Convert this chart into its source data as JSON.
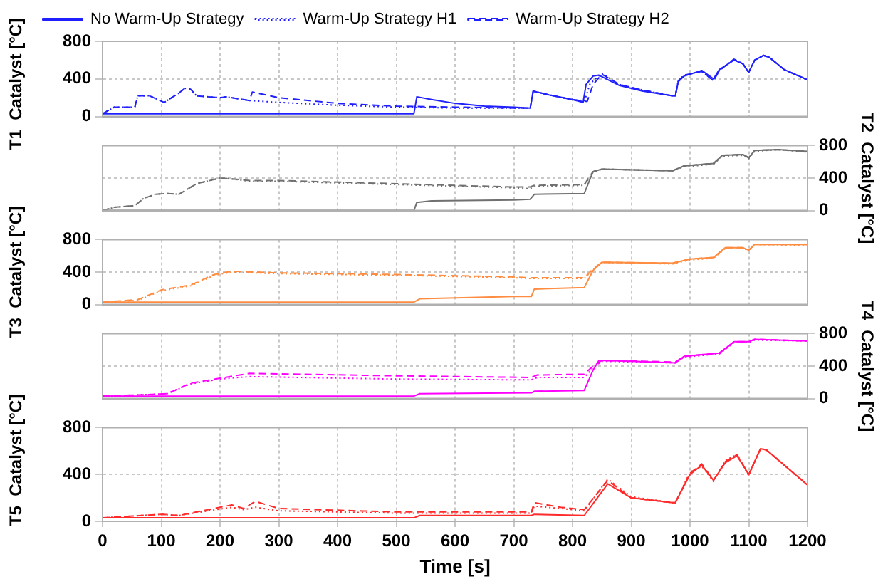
{
  "chart_data": [
    {
      "type": "line",
      "ylabel": "T1_Catalyst [°C]",
      "xlim": [
        0,
        1200
      ],
      "xticks": [
        0,
        100,
        200,
        300,
        400,
        500,
        600,
        700,
        800,
        900,
        1000,
        1100,
        1200
      ],
      "ylim": [
        0,
        800
      ],
      "yticks": [
        0,
        400,
        800
      ],
      "grid": true,
      "legend": "top left",
      "tick_labels": "y",
      "series": [
        {
          "name": "No Warm-Up Strategy",
          "color": "#2020ff",
          "line_style": "solid",
          "x": [
            0,
            530,
            535,
            560,
            600,
            650,
            700,
            728,
            733,
            760,
            800,
            818,
            823,
            835,
            845,
            880,
            920,
            970,
            975,
            980,
            990,
            1020,
            1040,
            1050,
            1075,
            1090,
            1100,
            1110,
            1125,
            1135,
            1160,
            1200
          ],
          "values": [
            30,
            30,
            210,
            180,
            140,
            110,
            100,
            90,
            270,
            230,
            180,
            150,
            340,
            430,
            440,
            330,
            270,
            220,
            220,
            370,
            430,
            490,
            400,
            500,
            600,
            560,
            470,
            600,
            650,
            630,
            500,
            390
          ]
        },
        {
          "name": "Warm-Up Strategy H1",
          "color": "#2020ff",
          "line_style": "dotted",
          "x": [
            0,
            20,
            55,
            60,
            80,
            105,
            130,
            140,
            150,
            160,
            200,
            210,
            250,
            300,
            400,
            500,
            600,
            700,
            728,
            733,
            760,
            800,
            820,
            830,
            850,
            880,
            920,
            970,
            975,
            980,
            990,
            1020,
            1040,
            1050,
            1075,
            1090,
            1100,
            1110,
            1125,
            1135,
            1160,
            1200
          ],
          "values": [
            30,
            100,
            100,
            220,
            220,
            150,
            250,
            300,
            290,
            220,
            200,
            210,
            170,
            150,
            120,
            100,
            90,
            90,
            90,
            270,
            230,
            180,
            160,
            350,
            460,
            340,
            280,
            220,
            220,
            380,
            440,
            480,
            380,
            490,
            610,
            560,
            470,
            600,
            650,
            630,
            500,
            390
          ]
        },
        {
          "name": "Warm-Up Strategy H2",
          "color": "#2020ff",
          "line_style": "dashed",
          "x": [
            0,
            20,
            55,
            60,
            80,
            105,
            130,
            140,
            150,
            160,
            200,
            210,
            250,
            255,
            300,
            400,
            500,
            600,
            700,
            728,
            733,
            760,
            800,
            825,
            835,
            850,
            880,
            920,
            970,
            975,
            980,
            990,
            1020,
            1040,
            1050,
            1075,
            1090,
            1100,
            1110,
            1125,
            1135,
            1160,
            1200
          ],
          "values": [
            30,
            100,
            100,
            220,
            220,
            150,
            250,
            300,
            290,
            220,
            200,
            210,
            170,
            260,
            200,
            140,
            110,
            100,
            90,
            90,
            270,
            230,
            180,
            160,
            340,
            450,
            340,
            280,
            220,
            220,
            380,
            440,
            480,
            380,
            490,
            610,
            560,
            470,
            600,
            650,
            630,
            500,
            390
          ]
        }
      ]
    },
    {
      "type": "line",
      "ylabel": "T2_Catalyst [°C]",
      "xlim": [
        0,
        1200
      ],
      "xticks": [
        0,
        100,
        200,
        300,
        400,
        500,
        600,
        700,
        800,
        900,
        1000,
        1100,
        1200
      ],
      "ylim": [
        0,
        800
      ],
      "yticks": [
        0,
        400,
        800
      ],
      "grid": true,
      "tick_labels": "y",
      "series": [
        {
          "color": "#707070",
          "line_style": "solid",
          "x": [
            0,
            530,
            535,
            560,
            700,
            728,
            735,
            820,
            835,
            850,
            970,
            990,
            1040,
            1055,
            1090,
            1100,
            1110,
            1150,
            1200
          ],
          "values": [
            0,
            0,
            100,
            120,
            130,
            140,
            200,
            210,
            480,
            510,
            490,
            550,
            580,
            680,
            690,
            650,
            740,
            750,
            730
          ]
        },
        {
          "color": "#707070",
          "line_style": "dotted",
          "x": [
            0,
            20,
            55,
            70,
            90,
            110,
            130,
            160,
            200,
            220,
            250,
            300,
            400,
            500,
            600,
            700,
            728,
            735,
            820,
            835,
            850,
            970,
            990,
            1040,
            1055,
            1090,
            1100,
            1110,
            1150,
            1200
          ],
          "values": [
            0,
            40,
            60,
            150,
            200,
            210,
            200,
            330,
            400,
            390,
            360,
            360,
            340,
            320,
            300,
            280,
            270,
            300,
            310,
            470,
            510,
            490,
            540,
            570,
            670,
            680,
            640,
            730,
            750,
            720
          ]
        },
        {
          "color": "#707070",
          "line_style": "dashed",
          "x": [
            0,
            20,
            55,
            70,
            90,
            110,
            130,
            160,
            200,
            220,
            250,
            300,
            400,
            500,
            600,
            700,
            728,
            735,
            820,
            835,
            850,
            970,
            990,
            1040,
            1055,
            1090,
            1100,
            1110,
            1150,
            1200
          ],
          "values": [
            0,
            40,
            60,
            150,
            200,
            210,
            200,
            330,
            400,
            390,
            370,
            370,
            350,
            330,
            310,
            290,
            290,
            310,
            320,
            480,
            510,
            490,
            550,
            580,
            680,
            690,
            650,
            740,
            750,
            730
          ]
        }
      ]
    },
    {
      "type": "line",
      "ylabel": "T3_Catalyst [°C]",
      "xlim": [
        0,
        1200
      ],
      "xticks": [
        0,
        100,
        200,
        300,
        400,
        500,
        600,
        700,
        800,
        900,
        1000,
        1100,
        1200
      ],
      "ylim": [
        0,
        800
      ],
      "yticks": [
        0,
        400,
        800
      ],
      "grid": true,
      "tick_labels": "y",
      "series": [
        {
          "color": "#ff8c40",
          "line_style": "solid",
          "x": [
            0,
            530,
            540,
            700,
            730,
            735,
            820,
            835,
            850,
            970,
            1000,
            1040,
            1060,
            1090,
            1100,
            1110,
            1200
          ],
          "values": [
            30,
            30,
            70,
            100,
            100,
            190,
            210,
            420,
            520,
            510,
            560,
            580,
            700,
            700,
            670,
            740,
            740
          ]
        },
        {
          "color": "#ff8c40",
          "line_style": "dotted",
          "x": [
            0,
            60,
            100,
            150,
            190,
            220,
            300,
            500,
            700,
            730,
            820,
            835,
            850,
            970,
            1000,
            1040,
            1060,
            1090,
            1100,
            1110,
            1200
          ],
          "values": [
            30,
            50,
            170,
            230,
            360,
            400,
            380,
            360,
            330,
            320,
            320,
            430,
            520,
            500,
            550,
            570,
            690,
            690,
            670,
            740,
            730
          ]
        },
        {
          "color": "#ff8c40",
          "line_style": "dashed",
          "x": [
            0,
            60,
            100,
            150,
            190,
            220,
            300,
            500,
            700,
            730,
            820,
            835,
            850,
            970,
            1000,
            1040,
            1060,
            1090,
            1100,
            1110,
            1200
          ],
          "values": [
            30,
            60,
            180,
            240,
            370,
            410,
            390,
            370,
            340,
            330,
            330,
            440,
            520,
            510,
            560,
            580,
            700,
            700,
            670,
            740,
            740
          ]
        }
      ]
    },
    {
      "type": "line",
      "ylabel": "T4_Catalyst [°C]",
      "xlim": [
        0,
        1200
      ],
      "xticks": [
        0,
        100,
        200,
        300,
        400,
        500,
        600,
        700,
        800,
        900,
        1000,
        1100,
        1200
      ],
      "ylim": [
        0,
        800
      ],
      "yticks": [
        0,
        400,
        800
      ],
      "grid": true,
      "tick_labels": "y",
      "series": [
        {
          "color": "#ff00ff",
          "line_style": "solid",
          "x": [
            0,
            530,
            540,
            730,
            735,
            820,
            835,
            845,
            900,
            975,
            990,
            1050,
            1075,
            1100,
            1110,
            1200
          ],
          "values": [
            30,
            30,
            60,
            70,
            90,
            100,
            350,
            470,
            460,
            440,
            520,
            560,
            700,
            700,
            730,
            710
          ]
        },
        {
          "color": "#ff00ff",
          "line_style": "dotted",
          "x": [
            0,
            80,
            110,
            150,
            200,
            250,
            500,
            730,
            740,
            820,
            835,
            850,
            975,
            990,
            1050,
            1075,
            1100,
            1110,
            1200
          ],
          "values": [
            30,
            50,
            60,
            180,
            240,
            270,
            240,
            230,
            260,
            260,
            380,
            460,
            440,
            510,
            550,
            690,
            690,
            720,
            710
          ]
        },
        {
          "color": "#ff00ff",
          "line_style": "dashed",
          "x": [
            0,
            80,
            110,
            150,
            200,
            250,
            500,
            730,
            740,
            820,
            835,
            850,
            975,
            990,
            1050,
            1075,
            1100,
            1110,
            1200
          ],
          "values": [
            30,
            50,
            60,
            190,
            250,
            310,
            280,
            260,
            290,
            300,
            400,
            470,
            450,
            520,
            560,
            700,
            700,
            730,
            710
          ]
        }
      ]
    },
    {
      "type": "line",
      "ylabel": "T5_Catalyst [°C]",
      "xlabel": "Time [s]",
      "xlim": [
        0,
        1200
      ],
      "xticks": [
        0,
        100,
        200,
        300,
        400,
        500,
        600,
        700,
        800,
        900,
        1000,
        1100,
        1200
      ],
      "ylim": [
        0,
        800
      ],
      "yticks": [
        0,
        400,
        800
      ],
      "grid": true,
      "series": [
        {
          "color": "#ff2a2a",
          "line_style": "solid",
          "x": [
            0,
            530,
            540,
            730,
            735,
            820,
            860,
            900,
            970,
            975,
            1000,
            1020,
            1040,
            1060,
            1080,
            1100,
            1120,
            1130,
            1200
          ],
          "values": [
            30,
            30,
            50,
            50,
            60,
            50,
            320,
            200,
            160,
            160,
            400,
            480,
            350,
            500,
            560,
            400,
            620,
            610,
            310
          ]
        },
        {
          "color": "#ff2a2a",
          "line_style": "dotted",
          "x": [
            0,
            100,
            130,
            180,
            220,
            240,
            260,
            300,
            500,
            730,
            735,
            780,
            820,
            860,
            900,
            970,
            975,
            1000,
            1020,
            1040,
            1060,
            1080,
            1100,
            1120,
            1130,
            1200
          ],
          "values": [
            30,
            60,
            50,
            90,
            120,
            100,
            120,
            90,
            70,
            70,
            130,
            110,
            90,
            360,
            210,
            160,
            160,
            420,
            470,
            340,
            520,
            570,
            390,
            620,
            610,
            310
          ]
        },
        {
          "color": "#ff2a2a",
          "line_style": "dashed",
          "x": [
            0,
            100,
            130,
            180,
            220,
            240,
            260,
            300,
            500,
            730,
            735,
            780,
            820,
            860,
            900,
            970,
            975,
            1000,
            1020,
            1040,
            1060,
            1080,
            1100,
            1120,
            1130,
            1200
          ],
          "values": [
            30,
            60,
            50,
            100,
            140,
            110,
            170,
            110,
            80,
            80,
            160,
            120,
            100,
            350,
            200,
            160,
            160,
            410,
            490,
            350,
            510,
            570,
            400,
            620,
            610,
            310
          ]
        }
      ]
    }
  ]
}
